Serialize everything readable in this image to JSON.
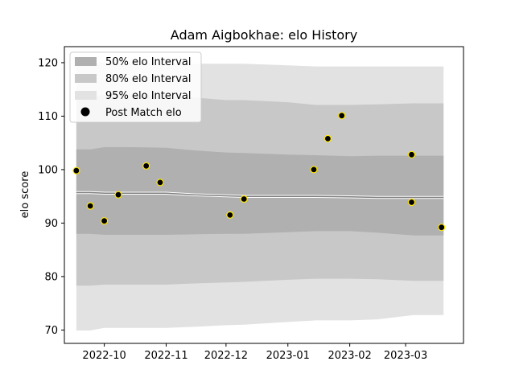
{
  "chart_data": {
    "type": "area",
    "title": "Adam Aigbokhae: elo History",
    "xlabel": "",
    "ylabel": "elo score",
    "xlim": [
      "2022-09-11",
      "2023-03-30"
    ],
    "ylim": [
      67.5,
      123
    ],
    "x_tick_labels": [
      "2022-10",
      "2022-11",
      "2022-12",
      "2023-01",
      "2023-02",
      "2023-03"
    ],
    "x_ticks": [
      "2022-10-01",
      "2022-11-01",
      "2022-12-01",
      "2023-01-01",
      "2023-02-01",
      "2023-03-01"
    ],
    "y_ticks": [
      70,
      80,
      90,
      100,
      110,
      120
    ],
    "grid": false,
    "legend_position": "upper-left",
    "colors": {
      "band_50": "#b0b0b0",
      "band_80": "#c8c8c8",
      "band_95": "#e2e2e2",
      "mean_line": "#808080",
      "point_fill": "#000000",
      "point_edge": "#ffe600"
    },
    "legend": [
      {
        "label": "50% elo Interval",
        "kind": "band_50"
      },
      {
        "label": "80% elo Interval",
        "kind": "band_80"
      },
      {
        "label": "95% elo Interval",
        "kind": "band_95"
      },
      {
        "label": "Post Match elo",
        "kind": "point"
      }
    ],
    "band_dates": [
      "2022-09-17",
      "2022-09-24",
      "2022-10-01",
      "2022-10-15",
      "2022-11-01",
      "2022-11-15",
      "2022-12-01",
      "2022-12-10",
      "2023-01-01",
      "2023-01-15",
      "2023-02-01",
      "2023-02-15",
      "2023-03-05",
      "2023-03-20"
    ],
    "bands": {
      "mean": [
        95.7,
        95.7,
        95.6,
        95.6,
        95.6,
        95.3,
        95.1,
        95.0,
        95.0,
        95.0,
        94.9,
        94.8,
        94.8,
        94.8
      ],
      "p50_lo": [
        88.0,
        88.0,
        87.8,
        87.8,
        87.8,
        87.9,
        88.0,
        88.0,
        88.3,
        88.5,
        88.5,
        88.2,
        87.7,
        87.7
      ],
      "p50_hi": [
        103.8,
        103.8,
        104.2,
        104.2,
        104.1,
        103.6,
        103.2,
        103.1,
        102.8,
        102.7,
        102.5,
        102.6,
        102.6,
        102.6
      ],
      "p80_lo": [
        78.3,
        78.3,
        78.5,
        78.5,
        78.5,
        78.7,
        78.9,
        79.0,
        79.4,
        79.6,
        79.6,
        79.5,
        79.2,
        79.2
      ],
      "p80_hi": [
        113.5,
        113.5,
        114.0,
        114.0,
        113.9,
        113.5,
        113.0,
        113.0,
        112.6,
        112.1,
        112.1,
        112.2,
        112.4,
        112.4
      ],
      "p95_lo": [
        69.9,
        69.9,
        70.4,
        70.4,
        70.4,
        70.6,
        70.9,
        71.0,
        71.5,
        71.8,
        71.8,
        72.0,
        72.8,
        72.8
      ],
      "p95_hi": [
        120.0,
        120.0,
        120.0,
        120.0,
        120.0,
        119.8,
        119.8,
        119.8,
        119.5,
        119.3,
        119.3,
        119.3,
        119.3,
        119.3
      ]
    },
    "points": [
      {
        "x": "2022-09-17",
        "y": 99.8
      },
      {
        "x": "2022-09-24",
        "y": 93.2
      },
      {
        "x": "2022-10-01",
        "y": 90.4
      },
      {
        "x": "2022-10-08",
        "y": 95.3
      },
      {
        "x": "2022-10-22",
        "y": 100.7
      },
      {
        "x": "2022-10-29",
        "y": 97.6
      },
      {
        "x": "2022-12-03",
        "y": 91.5
      },
      {
        "x": "2022-12-10",
        "y": 94.5
      },
      {
        "x": "2023-01-14",
        "y": 100.0
      },
      {
        "x": "2023-01-21",
        "y": 105.8
      },
      {
        "x": "2023-01-28",
        "y": 110.1
      },
      {
        "x": "2023-03-04",
        "y": 102.8
      },
      {
        "x": "2023-03-04",
        "y": 93.9
      },
      {
        "x": "2023-03-19",
        "y": 89.2
      }
    ]
  }
}
